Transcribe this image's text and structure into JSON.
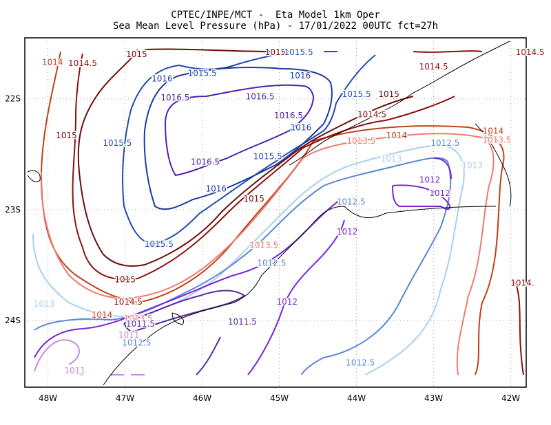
{
  "header": {
    "line1": "CPTEC/INPE/MCT -  Eta Model 1km Oper",
    "line2": "Sea Mean Level Pressure (hPa) - 17/01/2022 00UTC fct=27h"
  },
  "axes": {
    "lon_labels": [
      "48W",
      "47W",
      "46W",
      "45W",
      "44W",
      "43W",
      "42W"
    ],
    "lat_labels": [
      "22S",
      "23S",
      "24S"
    ],
    "lon_range": [
      -48.3,
      -41.8
    ],
    "lat_range": [
      -21.45,
      -24.6
    ],
    "grid": "dotted"
  },
  "colors": {
    "1011": "#c58be0",
    "1011.5": "#5a2aa0",
    "1012": "#7b24d6",
    "1012.5": "#5a86d6",
    "1013": "#a9cff0",
    "1013.5": "#f07a6e",
    "1014": "#c0401a",
    "1014.5": "#8b1010",
    "1015": "#6a0a0a",
    "1015.5": "#1f4bb0",
    "1016": "#1a3aa0",
    "1016.5": "#4a20b0",
    "coast": "#000000"
  },
  "contour_labels": [
    {
      "text": "1015",
      "level": "1015",
      "lon": -46.85,
      "lat": -21.6
    },
    {
      "text": "1014.5",
      "level": "1014.5",
      "lon": -47.55,
      "lat": -21.68
    },
    {
      "text": "1014",
      "level": "1014",
      "lon": -47.94,
      "lat": -21.67
    },
    {
      "text": "1015",
      "level": "1015",
      "lon": -45.05,
      "lat": -21.58
    },
    {
      "text": "1015.5",
      "level": "1015.5",
      "lon": -44.75,
      "lat": -21.58
    },
    {
      "text": "1014.5",
      "level": "1014.5",
      "lon": -41.75,
      "lat": -21.58
    },
    {
      "text": "1014.5",
      "level": "1014.5",
      "lon": -43.0,
      "lat": -21.71
    },
    {
      "text": "1016",
      "level": "1016",
      "lon": -46.52,
      "lat": -21.82
    },
    {
      "text": "1015.5",
      "level": "1015.5",
      "lon": -46.0,
      "lat": -21.77
    },
    {
      "text": "1016",
      "level": "1016",
      "lon": -44.73,
      "lat": -21.79
    },
    {
      "text": "1016.5",
      "level": "1016.5",
      "lon": -46.35,
      "lat": -21.99
    },
    {
      "text": "1016.5",
      "level": "1016.5",
      "lon": -45.25,
      "lat": -21.98
    },
    {
      "text": "1015.5",
      "level": "1015.5",
      "lon": -44.0,
      "lat": -21.96
    },
    {
      "text": "1015",
      "level": "1015",
      "lon": -43.58,
      "lat": -21.96
    },
    {
      "text": "1016.5",
      "level": "1016.5",
      "lon": -44.88,
      "lat": -22.15
    },
    {
      "text": "1014.5",
      "level": "1014.5",
      "lon": -43.8,
      "lat": -22.14
    },
    {
      "text": "1016",
      "level": "1016",
      "lon": -44.72,
      "lat": -22.26
    },
    {
      "text": "1015",
      "level": "1015",
      "lon": -47.76,
      "lat": -22.33
    },
    {
      "text": "1015.5",
      "level": "1015.5",
      "lon": -47.1,
      "lat": -22.4
    },
    {
      "text": "1014",
      "level": "1014",
      "lon": -43.48,
      "lat": -22.33
    },
    {
      "text": "1013.5",
      "level": "1013.5",
      "lon": -43.94,
      "lat": -22.38
    },
    {
      "text": "1012.5",
      "level": "1012.5",
      "lon": -42.85,
      "lat": -22.4
    },
    {
      "text": "1014",
      "level": "1014",
      "lon": -42.23,
      "lat": -22.29
    },
    {
      "text": "1013.5",
      "level": "1013.5",
      "lon": -42.18,
      "lat": -22.37
    },
    {
      "text": "1015.5",
      "level": "1015.5",
      "lon": -45.15,
      "lat": -22.52
    },
    {
      "text": "1013",
      "level": "1013",
      "lon": -43.55,
      "lat": -22.54
    },
    {
      "text": "1016.5",
      "level": "1016.5",
      "lon": -45.96,
      "lat": -22.57
    },
    {
      "text": "1013",
      "level": "1013",
      "lon": -42.5,
      "lat": -22.6
    },
    {
      "text": "1012",
      "level": "1012",
      "lon": -43.05,
      "lat": -22.73
    },
    {
      "text": "1016",
      "level": "1016",
      "lon": -45.82,
      "lat": -22.81
    },
    {
      "text": "1012",
      "level": "1012",
      "lon": -42.92,
      "lat": -22.85
    },
    {
      "text": "1015",
      "level": "1015",
      "lon": -45.33,
      "lat": -22.9
    },
    {
      "text": "1012.5",
      "level": "1012.5",
      "lon": -44.07,
      "lat": -22.93
    },
    {
      "text": "1012",
      "level": "1012",
      "lon": -44.12,
      "lat": -23.2
    },
    {
      "text": "1015.5",
      "level": "1015.5",
      "lon": -46.56,
      "lat": -23.31
    },
    {
      "text": "1013.5",
      "level": "1013.5",
      "lon": -45.2,
      "lat": -23.32
    },
    {
      "text": "1012.5",
      "level": "1012.5",
      "lon": -45.1,
      "lat": -23.48
    },
    {
      "text": "1015",
      "level": "1015",
      "lon": -47.0,
      "lat": -23.63
    },
    {
      "text": "1014.",
      "level": "1014.5",
      "lon": -41.85,
      "lat": -23.66
    },
    {
      "text": "1014.5",
      "level": "1014.5",
      "lon": -46.96,
      "lat": -23.83
    },
    {
      "text": "1012",
      "level": "1012",
      "lon": -44.9,
      "lat": -23.83
    },
    {
      "text": "1013",
      "level": "1013",
      "lon": -48.05,
      "lat": -23.85
    },
    {
      "text": "1014",
      "level": "1014",
      "lon": -47.3,
      "lat": -23.95
    },
    {
      "text": "1013.5",
      "level": "1013.5",
      "lon": -46.83,
      "lat": -23.98
    },
    {
      "text": "1011.5",
      "level": "1011.5",
      "lon": -45.48,
      "lat": -24.01
    },
    {
      "text": "1012.5",
      "level": "1012.5",
      "lon": -46.85,
      "lat": -24.2
    },
    {
      "text": "1011",
      "level": "1011",
      "lon": -46.95,
      "lat": -24.13
    },
    {
      "text": "1011.5",
      "level": "1011.5",
      "lon": -46.8,
      "lat": -24.03
    },
    {
      "text": "1012.5",
      "level": "1012.5",
      "lon": -43.95,
      "lat": -24.38
    },
    {
      "text": "1011",
      "level": "1011",
      "lon": -47.65,
      "lat": -24.45
    }
  ]
}
